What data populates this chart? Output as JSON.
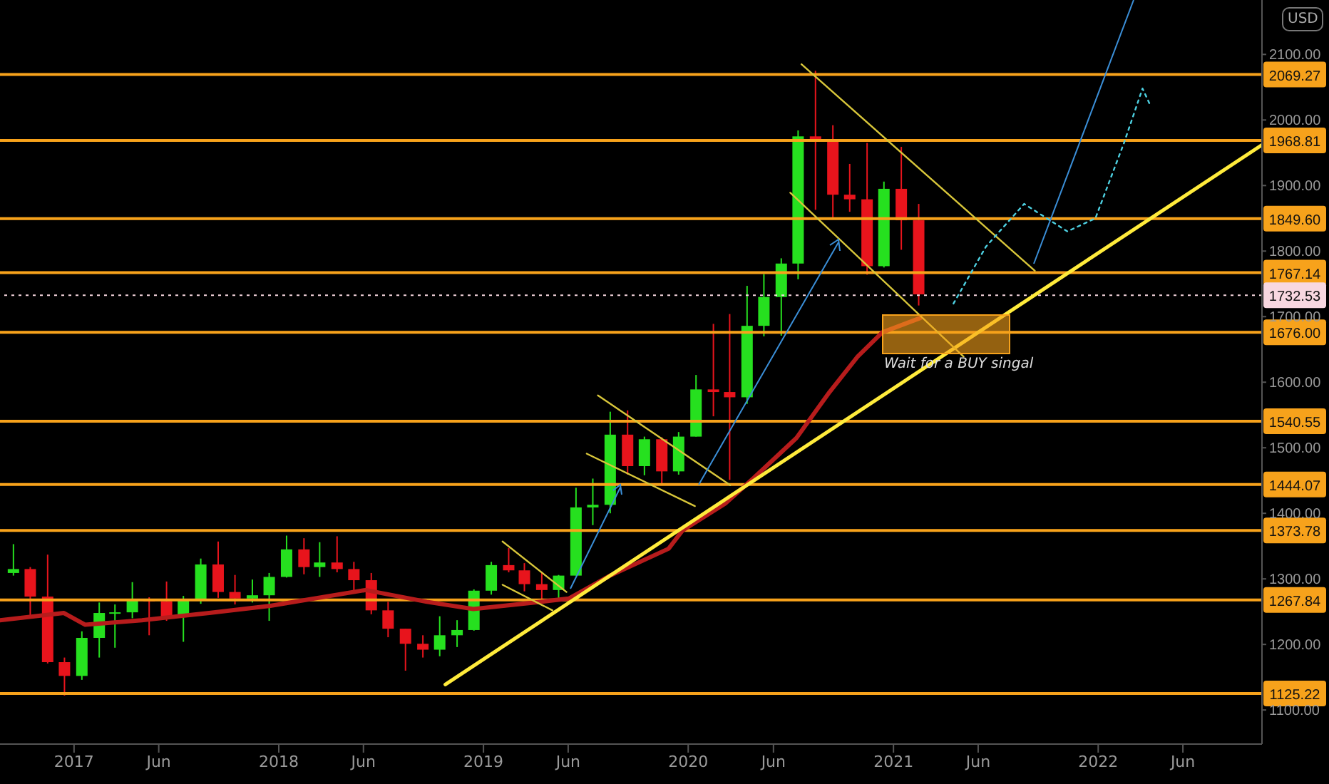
{
  "chart_data": {
    "type": "candlestick",
    "ylabel": "USD",
    "x": [
      "2016-09-15",
      "2016-10-15",
      "2016-11-15",
      "2016-12-15",
      "2017-01-15",
      "2017-02-15",
      "2017-03-15",
      "2017-04-15",
      "2017-05-15",
      "2017-06-15",
      "2017-07-15",
      "2017-08-15",
      "2017-09-15",
      "2017-10-15",
      "2017-11-15",
      "2017-12-15",
      "2018-01-15",
      "2018-02-15",
      "2018-03-15",
      "2018-04-15",
      "2018-05-15",
      "2018-06-15",
      "2018-07-15",
      "2018-08-15",
      "2018-09-15",
      "2018-10-15",
      "2018-11-15",
      "2018-12-15",
      "2019-01-15",
      "2019-02-15",
      "2019-03-15",
      "2019-04-15",
      "2019-05-15",
      "2019-06-15",
      "2019-07-15",
      "2019-08-15",
      "2019-09-15",
      "2019-10-15",
      "2019-11-15",
      "2019-12-15",
      "2020-01-15",
      "2020-02-15",
      "2020-03-15",
      "2020-04-15",
      "2020-05-15",
      "2020-06-15",
      "2020-07-15",
      "2020-08-15",
      "2020-09-15",
      "2020-10-15",
      "2020-11-15",
      "2020-12-15",
      "2021-01-15",
      "2021-02-15"
    ],
    "ohlc": [
      [
        1309,
        1353,
        1305,
        1315
      ],
      [
        1315,
        1318,
        1241,
        1273
      ],
      [
        1273,
        1337,
        1171,
        1173
      ],
      [
        1173,
        1180,
        1122,
        1152
      ],
      [
        1152,
        1220,
        1146,
        1210
      ],
      [
        1210,
        1264,
        1180,
        1248
      ],
      [
        1248,
        1261,
        1195,
        1249
      ],
      [
        1249,
        1295,
        1240,
        1268
      ],
      [
        1268,
        1272,
        1214,
        1266
      ],
      [
        1266,
        1296,
        1236,
        1242
      ],
      [
        1242,
        1274,
        1204,
        1269
      ],
      [
        1269,
        1331,
        1262,
        1322
      ],
      [
        1322,
        1357,
        1271,
        1280
      ],
      [
        1280,
        1306,
        1261,
        1270
      ],
      [
        1270,
        1299,
        1264,
        1275
      ],
      [
        1275,
        1309,
        1236,
        1303
      ],
      [
        1303,
        1366,
        1302,
        1345
      ],
      [
        1345,
        1362,
        1307,
        1318
      ],
      [
        1318,
        1356,
        1303,
        1325
      ],
      [
        1325,
        1365,
        1310,
        1315
      ],
      [
        1315,
        1326,
        1282,
        1298
      ],
      [
        1298,
        1309,
        1246,
        1252
      ],
      [
        1252,
        1265,
        1211,
        1224
      ],
      [
        1224,
        1224,
        1160,
        1201
      ],
      [
        1201,
        1214,
        1180,
        1192
      ],
      [
        1192,
        1243,
        1182,
        1214
      ],
      [
        1214,
        1237,
        1196,
        1222
      ],
      [
        1222,
        1284,
        1221,
        1282
      ],
      [
        1282,
        1326,
        1276,
        1321
      ],
      [
        1321,
        1347,
        1310,
        1313
      ],
      [
        1313,
        1324,
        1281,
        1292
      ],
      [
        1292,
        1310,
        1266,
        1283
      ],
      [
        1283,
        1306,
        1267,
        1305
      ],
      [
        1305,
        1439,
        1305,
        1409
      ],
      [
        1409,
        1453,
        1382,
        1413
      ],
      [
        1413,
        1555,
        1400,
        1520
      ],
      [
        1520,
        1557,
        1459,
        1472
      ],
      [
        1472,
        1517,
        1458,
        1513
      ],
      [
        1513,
        1516,
        1445,
        1464
      ],
      [
        1464,
        1524,
        1459,
        1517
      ],
      [
        1517,
        1611,
        1517,
        1589
      ],
      [
        1589,
        1689,
        1548,
        1585
      ],
      [
        1585,
        1704,
        1451,
        1577
      ],
      [
        1577,
        1747,
        1567,
        1686
      ],
      [
        1686,
        1765,
        1670,
        1730
      ],
      [
        1730,
        1789,
        1671,
        1781
      ],
      [
        1781,
        1984,
        1757,
        1975
      ],
      [
        1975,
        2075,
        1863,
        1967
      ],
      [
        1967,
        1992,
        1848,
        1886
      ],
      [
        1886,
        1933,
        1860,
        1879
      ],
      [
        1879,
        1965,
        1764,
        1777
      ],
      [
        1777,
        1906,
        1775,
        1895
      ],
      [
        1895,
        1959,
        1802,
        1847
      ],
      [
        1847,
        1872,
        1717,
        1734
      ]
    ],
    "colors": [
      "#26e01f",
      "#e8141c",
      "#e8141c",
      "#e8141c",
      "#26e01f",
      "#26e01f",
      "#26e01f",
      "#26e01f",
      "#e8141c",
      "#e8141c",
      "#26e01f",
      "#26e01f",
      "#e8141c",
      "#e8141c",
      "#26e01f",
      "#26e01f",
      "#26e01f",
      "#e8141c",
      "#26e01f",
      "#e8141c",
      "#e8141c",
      "#e8141c",
      "#e8141c",
      "#e8141c",
      "#e8141c",
      "#26e01f",
      "#26e01f",
      "#26e01f",
      "#26e01f",
      "#e8141c",
      "#e8141c",
      "#e8141c",
      "#26e01f",
      "#26e01f",
      "#26e01f",
      "#26e01f",
      "#e8141c",
      "#26e01f",
      "#e8141c",
      "#26e01f",
      "#26e01f",
      "#e8141c",
      "#e8141c",
      "#26e01f",
      "#26e01f",
      "#26e01f",
      "#26e01f",
      "#e8141c",
      "#e8141c",
      "#e8141c",
      "#e8141c",
      "#26e01f",
      "#e8141c",
      "#e8141c"
    ],
    "series": [
      {
        "type": "line",
        "color": "#b71c1c",
        "x": [
          "2016-08-22",
          "2016-12-14",
          "2017-01-21",
          "2017-05-02",
          "2017-08-30",
          "2017-12-17",
          "2018-06-05",
          "2018-09-22",
          "2018-12-14",
          "2019-04-12",
          "2019-06-02",
          "2019-08-17",
          "2019-11-27",
          "2019-12-22",
          "2020-03-07",
          "2020-04-27",
          "2020-07-12",
          "2020-09-09",
          "2020-10-29",
          "2020-12-12",
          "2021-02-18"
        ],
        "values": [
          1237,
          1248,
          1230,
          1237,
          1248,
          1259,
          1283,
          1265,
          1254,
          1265,
          1270,
          1306,
          1346,
          1374,
          1415,
          1454,
          1515,
          1585,
          1639,
          1676,
          1698
        ]
      },
      {
        "type": "line",
        "color": "#ffeb3b",
        "x": [
          "2018-10-25",
          "2022-10-20"
        ],
        "values": [
          1139,
          1962
        ]
      },
      {
        "type": "line",
        "color": "#d8c63a",
        "x": [
          "2019-02-04",
          "2019-05-29"
        ],
        "values": [
          1357,
          1280
        ]
      },
      {
        "type": "line",
        "color": "#d8c63a",
        "x": [
          "2019-02-04",
          "2019-05-04"
        ],
        "values": [
          1291,
          1252
        ]
      },
      {
        "type": "line",
        "color": "#d8c63a",
        "x": [
          "2019-07-24",
          "2020-03-16"
        ],
        "values": [
          1580,
          1443
        ]
      },
      {
        "type": "line",
        "color": "#d8c63a",
        "x": [
          "2019-07-04",
          "2020-01-13"
        ],
        "values": [
          1491,
          1411
        ]
      },
      {
        "type": "line",
        "color": "#d8c63a",
        "x": [
          "2020-07-21",
          "2021-09-10"
        ],
        "values": [
          2085,
          1770
        ]
      },
      {
        "type": "line",
        "color": "#d8c63a",
        "x": [
          "2020-07-01",
          "2021-05-06"
        ],
        "values": [
          1889,
          1639
        ]
      },
      {
        "type": "line",
        "color": "#4dd0e1",
        "line_style": "dotted",
        "x": [
          "2021-04-18",
          "2021-06-15",
          "2021-08-22",
          "2021-11-07",
          "2021-12-27",
          "2022-02-16",
          "2022-03-21",
          "2022-04-03"
        ],
        "values": [
          1720,
          1807,
          1872,
          1830,
          1850,
          1965,
          2048,
          2024
        ]
      }
    ],
    "xlim": [
      "2016-08-22",
      "2022-10-20"
    ],
    "xticks": [
      {
        "value": "2017-01-01",
        "label": "2017"
      },
      {
        "value": "2017-06-01",
        "label": "Jun"
      },
      {
        "value": "2018-01-01",
        "label": "2018"
      },
      {
        "value": "2018-06-01",
        "label": "Jun"
      },
      {
        "value": "2019-01-01",
        "label": "2019"
      },
      {
        "value": "2019-06-01",
        "label": "Jun"
      },
      {
        "value": "2020-01-01",
        "label": "2020"
      },
      {
        "value": "2020-06-01",
        "label": "Jun"
      },
      {
        "value": "2021-01-01",
        "label": "2021"
      },
      {
        "value": "2021-06-01",
        "label": "Jun"
      },
      {
        "value": "2022-01-01",
        "label": "2022"
      },
      {
        "value": "2022-06-01",
        "label": "Jun"
      }
    ],
    "ylim": [
      1048,
      2183
    ],
    "yticks": [
      {
        "value": 1100,
        "label": "1100.00"
      },
      {
        "value": 1200,
        "label": "1200.00"
      },
      {
        "value": 1300,
        "label": "1300.00"
      },
      {
        "value": 1400,
        "label": "1400.00"
      },
      {
        "value": 1500,
        "label": "1500.00"
      },
      {
        "value": 1600,
        "label": "1600.00"
      },
      {
        "value": 1700,
        "label": "1700.00"
      },
      {
        "value": 1800,
        "label": "1800.00"
      },
      {
        "value": 1900,
        "label": "1900.00"
      },
      {
        "value": 2000,
        "label": "2000.00"
      },
      {
        "value": 2100,
        "label": "2100.00"
      }
    ],
    "ref_lines": [
      {
        "axis": "y",
        "value": 2069.27,
        "label": "2069.27",
        "color": "#f7a21b"
      },
      {
        "axis": "y",
        "value": 1968.81,
        "label": "1968.81",
        "color": "#f7a21b"
      },
      {
        "axis": "y",
        "value": 1849.6,
        "label": "1849.60",
        "color": "#f7a21b"
      },
      {
        "axis": "y",
        "value": 1767.14,
        "label": "1767.14",
        "color": "#f7a21b"
      },
      {
        "axis": "y",
        "value": 1732.53,
        "label": "1732.53",
        "color": "#f8d7e0",
        "line_style": "dotted"
      },
      {
        "axis": "y",
        "value": 1676,
        "label": "1676.00",
        "color": "#f7a21b"
      },
      {
        "axis": "y",
        "value": 1540.55,
        "label": "1540.55",
        "color": "#f7a21b"
      },
      {
        "axis": "y",
        "value": 1444.07,
        "label": "1444.07",
        "color": "#f7a21b"
      },
      {
        "axis": "y",
        "value": 1373.78,
        "label": "1373.78",
        "color": "#f7a21b"
      },
      {
        "axis": "y",
        "value": 1267.84,
        "label": "1267.84",
        "color": "#f7a21b"
      },
      {
        "axis": "y",
        "value": 1125.22,
        "label": "1125.22",
        "color": "#f7a21b"
      }
    ],
    "annotations": [
      "Wait for a BUY singal"
    ]
  }
}
